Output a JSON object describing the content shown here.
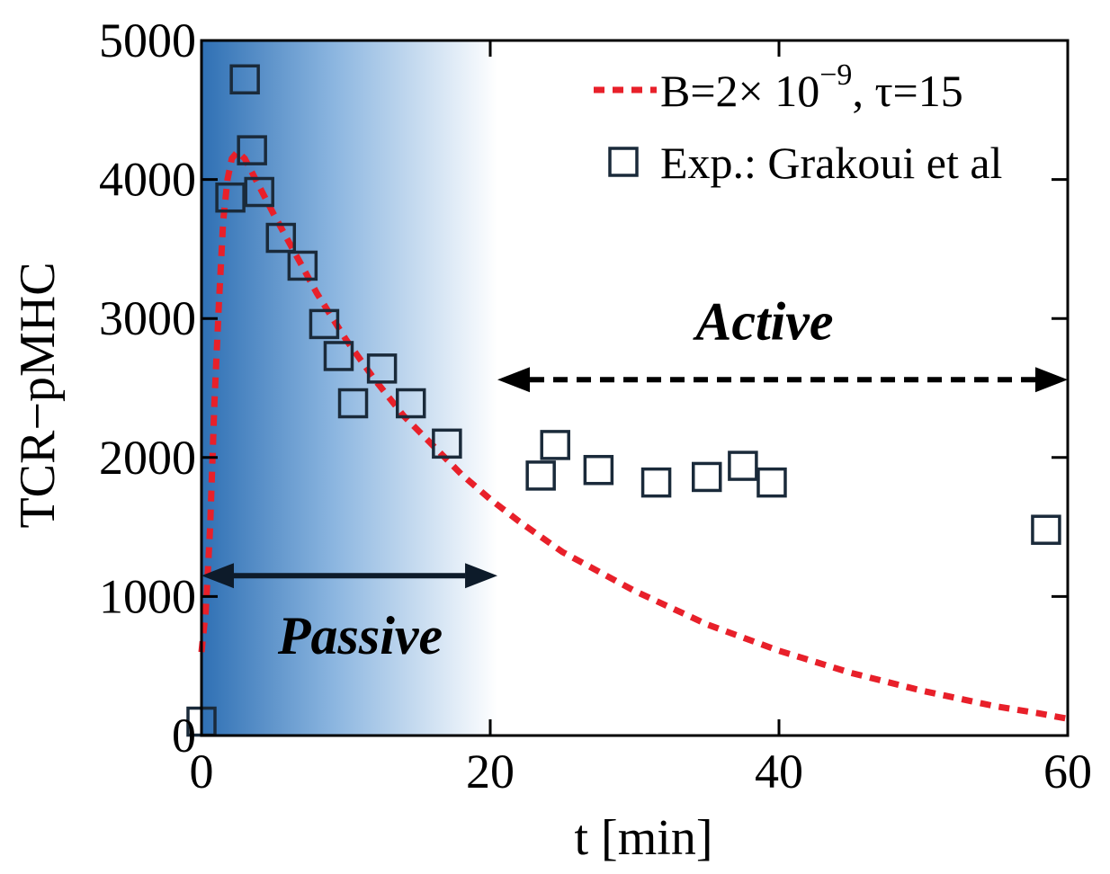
{
  "chart_data": {
    "type": "scatter",
    "title": "",
    "xlabel": "t [min]",
    "ylabel": "TCR−pMHC",
    "xlim": [
      0,
      60
    ],
    "ylim": [
      0,
      5000
    ],
    "xticks": [
      0,
      20,
      40,
      60
    ],
    "yticks": [
      0,
      1000,
      2000,
      3000,
      4000,
      5000
    ],
    "xtick_labels": [
      "0",
      "20",
      "40",
      "60"
    ],
    "ytick_labels": [
      "0",
      "1000",
      "2000",
      "3000",
      "4000",
      "5000"
    ],
    "grid": false,
    "legend_position": "top-right",
    "series": [
      {
        "name": "B=2× 10−9, τ=15",
        "legend_main": "B=2× 10",
        "legend_sup": "−9",
        "legend_tail": ", τ=15",
        "kind": "line",
        "style": "dashed",
        "color": "#e8202a",
        "x": [
          0.0,
          0.3,
          0.6,
          0.9,
          1.2,
          1.5,
          1.8,
          2.1,
          2.5,
          3.0,
          4.0,
          5.0,
          6.0,
          7.0,
          8.0,
          10.0,
          12.0,
          14.0,
          16.0,
          18.0,
          20.0,
          22.0,
          25.0,
          30.0,
          35.0,
          40.0,
          45.0,
          50.0,
          55.0,
          58.0,
          60.0
        ],
        "y": [
          600,
          900,
          1500,
          2400,
          3100,
          3700,
          4000,
          4150,
          4200,
          4150,
          3950,
          3750,
          3560,
          3370,
          3180,
          2850,
          2560,
          2300,
          2090,
          1880,
          1700,
          1540,
          1320,
          1040,
          800,
          610,
          450,
          320,
          210,
          160,
          120
        ]
      },
      {
        "name": "Exp.: Grakoui et al",
        "kind": "scatter",
        "marker": "square",
        "color": "#1a2a3a",
        "x": [
          0.0,
          2.0,
          3.0,
          3.5,
          4.0,
          5.5,
          7.0,
          8.5,
          9.5,
          10.5,
          12.5,
          14.5,
          17.0,
          23.5,
          24.5,
          27.5,
          31.5,
          35.0,
          37.5,
          39.5,
          58.5
        ],
        "y": [
          100,
          3870,
          4720,
          4210,
          3910,
          3580,
          3380,
          2960,
          2730,
          2390,
          2640,
          2390,
          2100,
          1870,
          2090,
          1910,
          1820,
          1860,
          1940,
          1820,
          1480
        ]
      }
    ],
    "annotations": [
      {
        "text": "Passive",
        "arrow": "double",
        "style": "solid",
        "x_from": 0,
        "x_to": 20.5,
        "y": 1150,
        "label_x": 11,
        "label_y": 590,
        "color": "#0d1b2a"
      },
      {
        "text": "Active",
        "arrow": "double",
        "style": "dashed",
        "x_from": 20.5,
        "x_to": 60,
        "y": 2560,
        "label_x": 39,
        "label_y": 2850,
        "color": "#000000"
      }
    ],
    "shaded_region": {
      "x_from": 0,
      "x_to": 20.5,
      "color_start": "#2f70b4",
      "color_end": "#ffffff",
      "label": "passive-phase gradient"
    }
  }
}
